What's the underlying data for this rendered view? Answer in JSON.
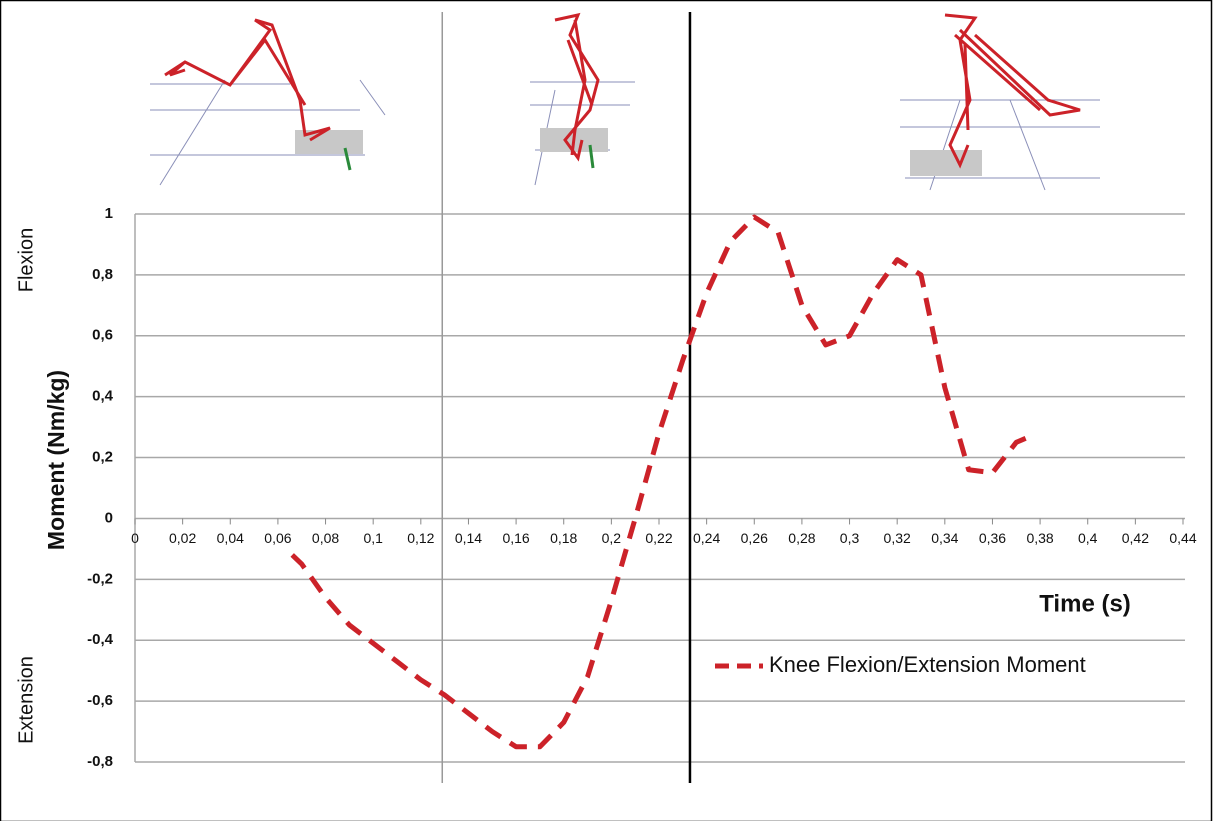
{
  "chart_data": {
    "type": "line",
    "y_label": "Moment (Nm/kg)",
    "x_label": "Time (s)",
    "annotations": [
      "Flexion",
      "Extension"
    ],
    "x": [
      0.066,
      0.07,
      0.08,
      0.09,
      0.1,
      0.11,
      0.12,
      0.13,
      0.14,
      0.15,
      0.16,
      0.17,
      0.18,
      0.19,
      0.2,
      0.21,
      0.22,
      0.23,
      0.24,
      0.25,
      0.26,
      0.27,
      0.28,
      0.29,
      0.3,
      0.31,
      0.32,
      0.33,
      0.34,
      0.35,
      0.36,
      0.37,
      0.376
    ],
    "series": [
      {
        "name": "Knee Flexion/Extension Moment",
        "color": "#cc2229",
        "values": [
          -0.12,
          -0.15,
          -0.26,
          -0.35,
          -0.41,
          -0.47,
          -0.53,
          -0.58,
          -0.64,
          -0.7,
          -0.75,
          -0.75,
          -0.67,
          -0.52,
          -0.27,
          0.0,
          0.28,
          0.52,
          0.74,
          0.91,
          0.99,
          0.94,
          0.7,
          0.57,
          0.6,
          0.74,
          0.85,
          0.8,
          0.43,
          0.16,
          0.15,
          0.25,
          0.27
        ]
      }
    ],
    "xlim": [
      0,
      0.44
    ],
    "ylim": [
      -0.8,
      1
    ],
    "xticks": [
      0,
      {
        "value": 0.02,
        "label": "0,02"
      },
      {
        "value": 0.04,
        "label": "0,04"
      },
      {
        "value": 0.06,
        "label": "0,06"
      },
      {
        "value": 0.08,
        "label": "0,08"
      },
      {
        "value": 0.1,
        "label": "0,1"
      },
      {
        "value": 0.12,
        "label": "0,12"
      },
      {
        "value": 0.14,
        "label": "0,14"
      },
      {
        "value": 0.16,
        "label": "0,16"
      },
      {
        "value": 0.18,
        "label": "0,18"
      },
      {
        "value": 0.2,
        "label": "0,2"
      },
      {
        "value": 0.22,
        "label": "0,22"
      },
      {
        "value": 0.24,
        "label": "0,24"
      },
      {
        "value": 0.26,
        "label": "0,26"
      },
      {
        "value": 0.28,
        "label": "0,28"
      },
      {
        "value": 0.3,
        "label": "0,3"
      },
      {
        "value": 0.32,
        "label": "0,32"
      },
      {
        "value": 0.34,
        "label": "0,34"
      },
      {
        "value": 0.36,
        "label": "0,36"
      },
      {
        "value": 0.38,
        "label": "0,38"
      },
      {
        "value": 0.4,
        "label": "0,4"
      },
      {
        "value": 0.42,
        "label": "0,42"
      },
      {
        "value": 0.44,
        "label": "0,44"
      }
    ],
    "yticks": [
      1,
      {
        "value": 0.8,
        "label": "0,8"
      },
      {
        "value": 0.6,
        "label": "0,6"
      },
      {
        "value": 0.4,
        "label": "0,4"
      },
      {
        "value": 0.2,
        "label": "0,2"
      },
      0,
      {
        "value": -0.2,
        "label": "-0,2"
      },
      {
        "value": -0.4,
        "label": "-0,4"
      },
      {
        "value": -0.6,
        "label": "-0,6"
      },
      {
        "value": -0.8,
        "label": "-0,8"
      }
    ],
    "reference_lines": [
      {
        "x": 0.129,
        "color": "#999999"
      },
      {
        "x": 0.233,
        "color": "#000000"
      }
    ],
    "grid": true,
    "legend": "right"
  }
}
